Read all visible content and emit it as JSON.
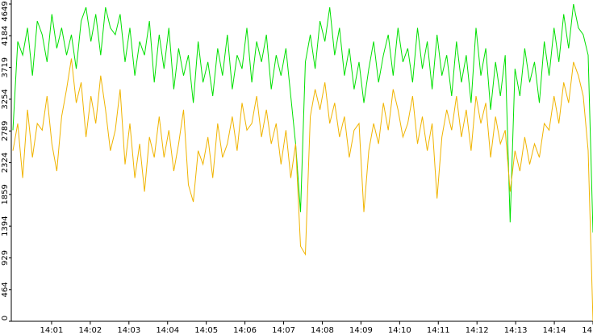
{
  "chart_data": {
    "type": "line",
    "ylim": [
      0,
      4649
    ],
    "yticks": [
      0,
      464,
      929,
      1394,
      1859,
      2324,
      2789,
      3254,
      3719,
      4184,
      4649
    ],
    "x_tick_labels": [
      "14:01",
      "14:02",
      "14:03",
      "14:04",
      "14:05",
      "14:06",
      "14:07",
      "14:08",
      "14:09",
      "14:10",
      "14:11",
      "14:12",
      "14:13",
      "14:14",
      "14"
    ],
    "series": [
      {
        "color": "#00e000",
        "values": [
          2800,
          4100,
          3900,
          4300,
          3600,
          4400,
          4200,
          3800,
          4500,
          4000,
          4300,
          3900,
          4200,
          3700,
          4400,
          4600,
          4100,
          4500,
          3900,
          4600,
          4300,
          4200,
          4500,
          3800,
          4300,
          3600,
          4100,
          3900,
          4400,
          3500,
          4200,
          3700,
          4300,
          3400,
          4000,
          3600,
          3900,
          3200,
          4100,
          3500,
          3800,
          3300,
          4000,
          3600,
          4200,
          3400,
          3900,
          3700,
          4300,
          3500,
          4100,
          3800,
          4200,
          3400,
          3900,
          3600,
          4000,
          3300,
          2600,
          1600,
          3800,
          4200,
          3700,
          4400,
          4100,
          4600,
          3900,
          4300,
          3600,
          4000,
          3400,
          3800,
          3200,
          3700,
          4100,
          3500,
          3900,
          4200,
          3600,
          4300,
          3800,
          4000,
          3500,
          4300,
          3700,
          4100,
          3400,
          4200,
          3600,
          3900,
          3300,
          4100,
          3500,
          3900,
          3200,
          4300,
          3600,
          4000,
          3100,
          3800,
          3300,
          3900,
          1450,
          3700,
          3300,
          4000,
          3500,
          3800,
          3200,
          4100,
          3600,
          4300,
          3800,
          4500,
          4000,
          4649,
          4300,
          4200,
          3900,
          1300
        ]
      },
      {
        "color": "#f0b400",
        "values": [
          2500,
          2900,
          2100,
          3100,
          2400,
          2900,
          2800,
          3300,
          2600,
          2200,
          3000,
          3400,
          3850,
          3200,
          3500,
          2700,
          3300,
          2900,
          3600,
          3100,
          2500,
          2800,
          3400,
          2300,
          2900,
          2100,
          2600,
          1900,
          2700,
          2400,
          3000,
          2400,
          2800,
          2200,
          2600,
          3100,
          2000,
          1750,
          2500,
          2300,
          2700,
          2100,
          2900,
          2400,
          2600,
          3000,
          2500,
          3200,
          2800,
          2900,
          3300,
          2700,
          3100,
          2600,
          2900,
          2300,
          2800,
          2100,
          2600,
          1100,
          980,
          3000,
          3400,
          3100,
          3500,
          2900,
          3200,
          2700,
          3000,
          2400,
          2800,
          2900,
          1600,
          2500,
          2900,
          2600,
          3200,
          2800,
          3400,
          3100,
          2700,
          2900,
          3300,
          2600,
          3000,
          2500,
          2900,
          1800,
          2700,
          3100,
          2800,
          3300,
          2700,
          3100,
          2500,
          3300,
          2900,
          3200,
          2400,
          3000,
          2600,
          2800,
          1900,
          2500,
          2200,
          2700,
          2300,
          2600,
          2400,
          2900,
          2800,
          3300,
          2900,
          3500,
          3200,
          3800,
          3600,
          3300,
          2500,
          0
        ]
      }
    ]
  }
}
